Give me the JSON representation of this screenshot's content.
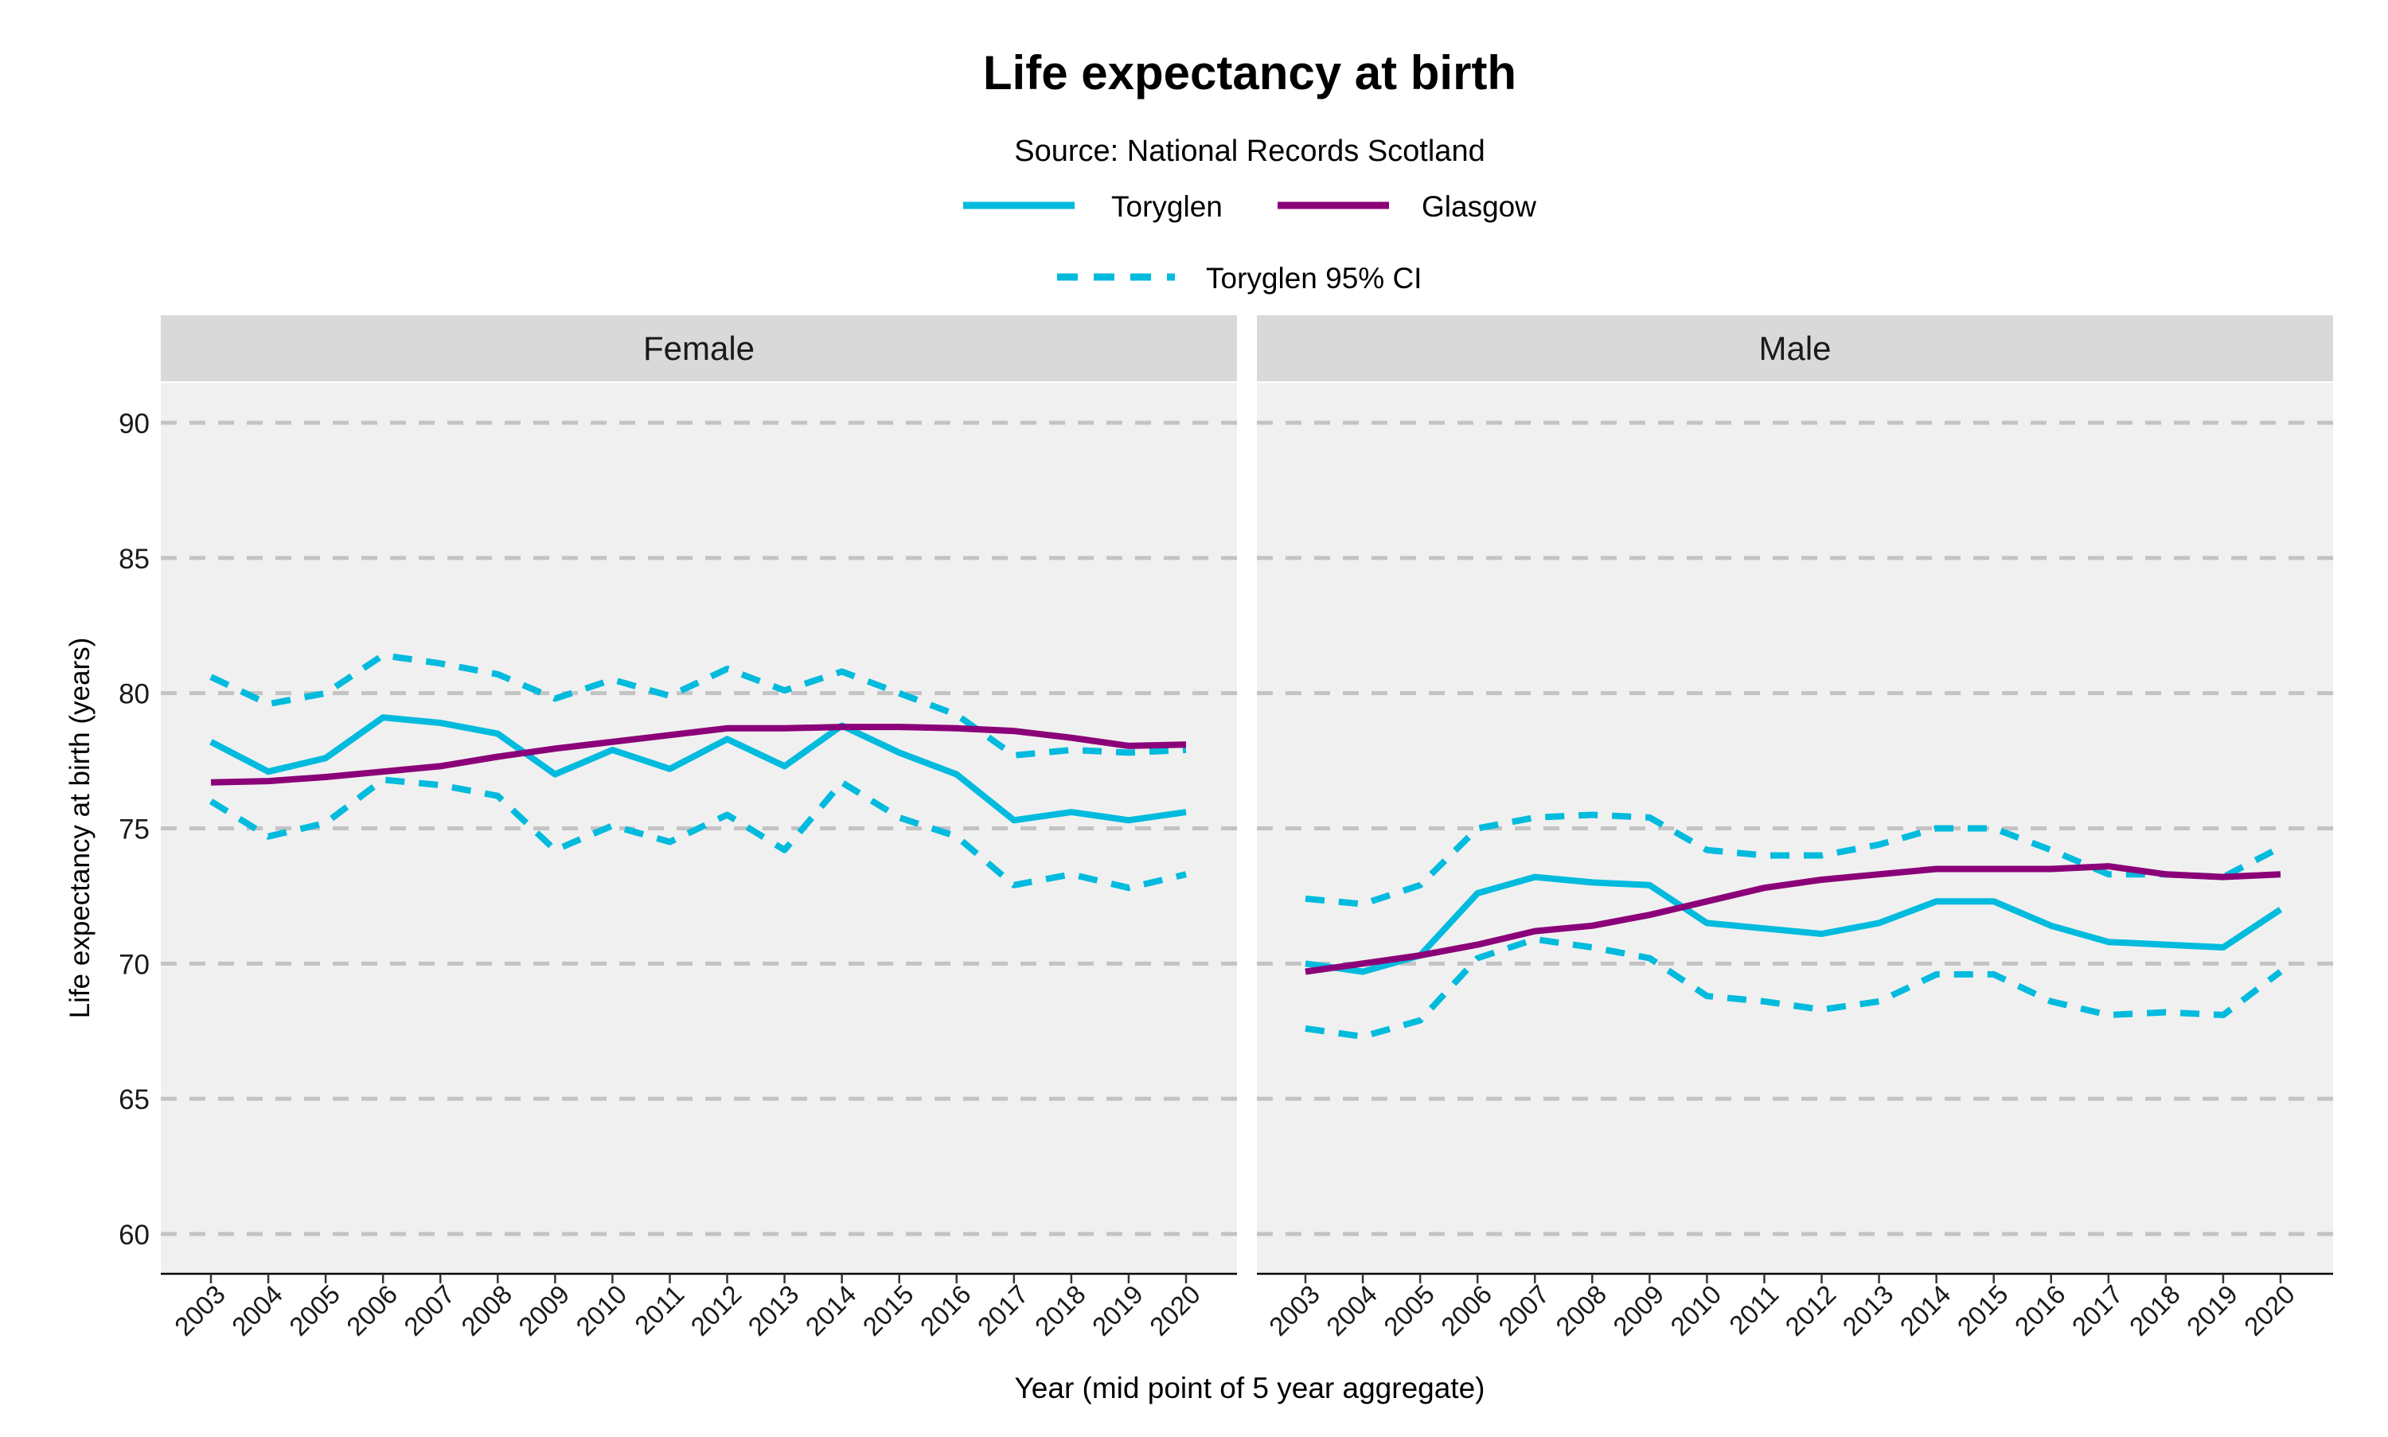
{
  "chart_data": [
    {
      "type": "line",
      "title": "Life expectancy at birth",
      "subtitle": "Source: National Records Scotland",
      "facet": "Female",
      "xlabel": "Year (mid point of 5 year aggregate)",
      "ylabel": "Life expectancy at birth (years)",
      "ylim": [
        58.5,
        92
      ],
      "yticks": [
        60,
        65,
        70,
        75,
        80,
        85,
        90
      ],
      "grid": true,
      "x": [
        2003,
        2004,
        2005,
        2006,
        2007,
        2008,
        2009,
        2010,
        2011,
        2012,
        2013,
        2014,
        2015,
        2016,
        2017,
        2018,
        2019,
        2020
      ],
      "series": [
        {
          "name": "Toryglen",
          "style": "solid",
          "color": "#00BBDD",
          "values": [
            78.2,
            77.1,
            77.6,
            79.1,
            78.9,
            78.5,
            77.0,
            77.9,
            77.2,
            78.3,
            77.3,
            78.8,
            77.8,
            77.0,
            75.3,
            75.6,
            75.3,
            75.6
          ]
        },
        {
          "name": "Glasgow",
          "style": "solid",
          "color": "#8B0078",
          "values": [
            76.7,
            76.75,
            76.9,
            77.1,
            77.3,
            77.65,
            77.95,
            78.2,
            78.45,
            78.7,
            78.7,
            78.75,
            78.75,
            78.7,
            78.6,
            78.35,
            78.05,
            78.1
          ]
        },
        {
          "name": "Toryglen 95% CI",
          "style": "dashed",
          "color": "#00BBDD",
          "bound": "upper",
          "values": [
            80.6,
            79.6,
            80.0,
            81.4,
            81.1,
            80.7,
            79.8,
            80.5,
            79.9,
            80.9,
            80.1,
            80.8,
            80.0,
            79.2,
            77.7,
            77.9,
            77.8,
            77.9
          ]
        },
        {
          "name": "Toryglen 95% CI",
          "style": "dashed",
          "color": "#00BBDD",
          "bound": "lower",
          "values": [
            76.0,
            74.7,
            75.2,
            76.8,
            76.6,
            76.2,
            74.2,
            75.1,
            74.5,
            75.5,
            74.2,
            76.7,
            75.4,
            74.7,
            72.9,
            73.3,
            72.8,
            73.3
          ]
        }
      ]
    },
    {
      "type": "line",
      "facet": "Male",
      "ylim": [
        58.5,
        92
      ],
      "x": [
        2003,
        2004,
        2005,
        2006,
        2007,
        2008,
        2009,
        2010,
        2011,
        2012,
        2013,
        2014,
        2015,
        2016,
        2017,
        2018,
        2019,
        2020
      ],
      "series": [
        {
          "name": "Toryglen",
          "style": "solid",
          "color": "#00BBDD",
          "values": [
            70.0,
            69.7,
            70.3,
            72.6,
            73.2,
            73.0,
            72.9,
            71.5,
            71.3,
            71.1,
            71.5,
            72.3,
            72.3,
            71.4,
            70.8,
            70.7,
            70.6,
            72.0
          ]
        },
        {
          "name": "Glasgow",
          "style": "solid",
          "color": "#8B0078",
          "values": [
            69.7,
            70.0,
            70.3,
            70.7,
            71.2,
            71.4,
            71.8,
            72.3,
            72.8,
            73.1,
            73.3,
            73.5,
            73.5,
            73.5,
            73.6,
            73.3,
            73.2,
            73.3
          ]
        },
        {
          "name": "Toryglen 95% CI",
          "style": "dashed",
          "color": "#00BBDD",
          "bound": "upper",
          "values": [
            72.4,
            72.2,
            72.9,
            75.0,
            75.4,
            75.5,
            75.4,
            74.2,
            74.0,
            74.0,
            74.4,
            75.0,
            75.0,
            74.2,
            73.3,
            73.3,
            73.2,
            74.3
          ]
        },
        {
          "name": "Toryglen 95% CI",
          "style": "dashed",
          "color": "#00BBDD",
          "bound": "lower",
          "values": [
            67.6,
            67.3,
            67.9,
            70.2,
            70.9,
            70.6,
            70.2,
            68.8,
            68.6,
            68.3,
            68.6,
            69.6,
            69.6,
            68.6,
            68.1,
            68.2,
            68.1,
            69.7
          ]
        }
      ]
    }
  ],
  "legend": {
    "placement": "top",
    "items": [
      {
        "label": "Toryglen",
        "color": "#00BBDD",
        "style": "solid"
      },
      {
        "label": "Glasgow",
        "color": "#8B0078",
        "style": "solid"
      },
      {
        "label": "Toryglen 95% CI",
        "color": "#00BBDD",
        "style": "dashed"
      }
    ]
  }
}
